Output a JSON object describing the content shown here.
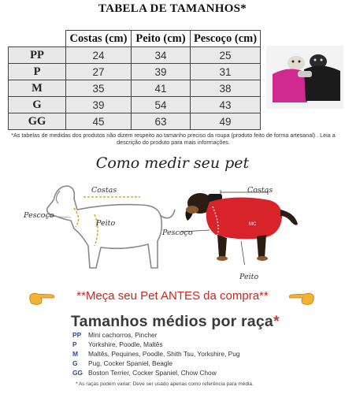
{
  "title": "TABELA DE TAMANHOS*",
  "table": {
    "headers": [
      "Costas (cm)",
      "Peito (cm)",
      "Pescoço (cm)"
    ],
    "rows": [
      {
        "size": "PP",
        "values": [
          "24",
          "34",
          "25"
        ]
      },
      {
        "size": "P",
        "values": [
          "27",
          "39",
          "31"
        ]
      },
      {
        "size": "M",
        "values": [
          "35",
          "41",
          "38"
        ]
      },
      {
        "size": "G",
        "values": [
          "39",
          "54",
          "43"
        ]
      },
      {
        "size": "GG",
        "values": [
          "45",
          "63",
          "49"
        ]
      }
    ]
  },
  "disclaimer": "*As tabelas de medidas dos produtos não dizem respeito ao tamanho preciso da roupa (produto feito de forma artesanal) . Leia a descrição do produto para mais informações.",
  "how_to_title": "Como medir seu pet",
  "diagram_labels": {
    "costas": "Costas",
    "pescoco": "Pescoço",
    "peito": "Peito"
  },
  "photo_labels": {
    "costas": "Costas",
    "pescoco": "Pescoço",
    "peito": "Peito"
  },
  "warning": "**Meça seu Pet ANTES da compra**",
  "breeds_title": "Tamanhos médios por raça",
  "breeds_title_star": "*",
  "breeds": [
    {
      "code": "PP",
      "text": "Mini cachorros, Pincher"
    },
    {
      "code": "P",
      "text": "Yorkshire, Poodle, Maltês"
    },
    {
      "code": "M",
      "text": "Maltês, Pequines, Poodle, Shith Tsu, Yorkshire, Pug"
    },
    {
      "code": "G",
      "text": "Pug, Cocker Spaniel, Beagle"
    },
    {
      "code": "GG",
      "text": "Boston Terrier, Cocker Spaniel, Chow Chow"
    }
  ],
  "footnote": "* As raças podem variar; Deve ser usado  apenas como referência para média.",
  "colors": {
    "accent_red": "#c8281e",
    "code_blue": "#2b4ba0",
    "cell_gray": "#e9e9e9"
  }
}
